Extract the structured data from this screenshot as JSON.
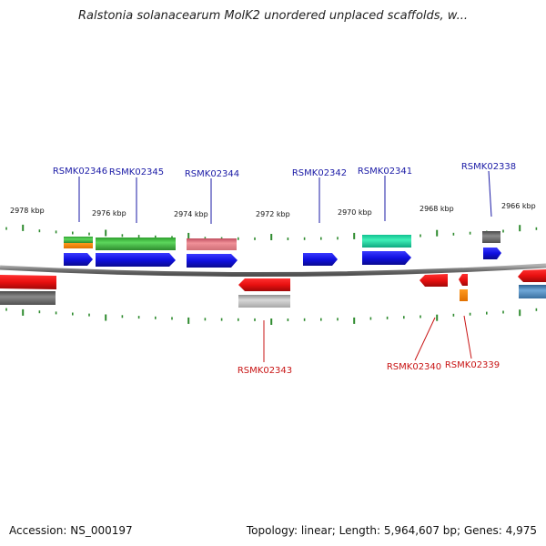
{
  "header": {
    "title": "Ralstonia solanacearum MolK2 unordered unplaced scaffolds, w..."
  },
  "footer": {
    "accession": "Accession: NS_000197",
    "summary": "Topology: linear; Length: 5,964,607 bp; Genes: 4,975"
  },
  "colors": {
    "backbone": "#808080",
    "tick": "#2e8b2e",
    "forward_label": "#1a1aa6",
    "reverse_label": "#c81414",
    "blue_gene": "#1010e0",
    "red_gene": "#e81010"
  },
  "scale_labels": [
    "2978 kbp",
    "2976 kbp",
    "2974 kbp",
    "2972 kbp",
    "2970 kbp",
    "2968 kbp",
    "2966 kbp"
  ],
  "genes_forward": [
    {
      "id": "RSMK02346",
      "label_color": "#1a1aa6"
    },
    {
      "id": "RSMK02345",
      "label_color": "#1a1aa6"
    },
    {
      "id": "RSMK02344",
      "label_color": "#1a1aa6"
    },
    {
      "id": "RSMK02342",
      "label_color": "#1a1aa6"
    },
    {
      "id": "RSMK02341",
      "label_color": "#1a1aa6"
    },
    {
      "id": "RSMK02338",
      "label_color": "#1a1aa6"
    }
  ],
  "genes_reverse": [
    {
      "id": "RSMK02343",
      "label_color": "#c81414"
    },
    {
      "id": "RSMK02340",
      "label_color": "#c81414"
    },
    {
      "id": "RSMK02339",
      "label_color": "#c81414"
    }
  ]
}
